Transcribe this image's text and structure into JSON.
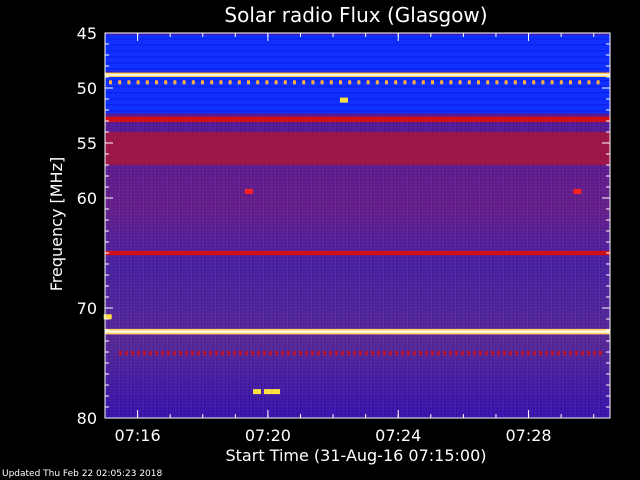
{
  "footer": "Updated Thu Feb 22 02:05:23 2018",
  "chart_data": {
    "type": "heatmap",
    "title": "Solar radio Flux (Glasgow)",
    "xlabel": "Start Time (31-Aug-16 07:15:00)",
    "ylabel": "Frequency [MHz]",
    "x_unit": "time",
    "xlim": [
      "07:15:00",
      "07:30:30"
    ],
    "ylim": [
      45,
      80
    ],
    "y_reversed": true,
    "y_ticks": [
      45,
      50,
      55,
      60,
      70,
      80
    ],
    "x_ticks": [
      "07:16",
      "07:20",
      "07:24",
      "07:28"
    ],
    "colors": {
      "background_low": "#2a10c0",
      "background_mid": "#5a2aa8",
      "band_red": "#d01018",
      "band_hot": "#ffd060",
      "blue_band": "#1030ff"
    },
    "bands": [
      {
        "freq_from": 45.2,
        "freq_to": 48.5,
        "level": "blue"
      },
      {
        "freq_from": 48.6,
        "freq_to": 49.0,
        "level": "hot"
      },
      {
        "freq_from": 49.0,
        "freq_to": 52.3,
        "level": "blue"
      },
      {
        "freq_from": 52.6,
        "freq_to": 53.1,
        "level": "red"
      },
      {
        "freq_from": 54.0,
        "freq_to": 57.0,
        "level": "red-mid"
      },
      {
        "freq_from": 64.8,
        "freq_to": 65.2,
        "level": "red"
      },
      {
        "freq_from": 71.9,
        "freq_to": 72.4,
        "level": "hot"
      },
      {
        "freq_from": 73.9,
        "freq_to": 74.3,
        "level": "red-dotted"
      }
    ],
    "bursts": [
      {
        "time": "07:19:25",
        "freq": 59.4,
        "level": "red"
      },
      {
        "time": "07:29:30",
        "freq": 59.4,
        "level": "red"
      },
      {
        "time": "07:22:20",
        "freq": 51.1,
        "level": "hot"
      },
      {
        "time": "07:19:40",
        "freq": 77.6,
        "level": "hot"
      },
      {
        "time": "07:20:00",
        "freq": 77.6,
        "level": "hot"
      },
      {
        "time": "07:20:15",
        "freq": 77.6,
        "level": "hot"
      },
      {
        "time": "07:15:05",
        "freq": 70.8,
        "level": "hot"
      }
    ]
  }
}
